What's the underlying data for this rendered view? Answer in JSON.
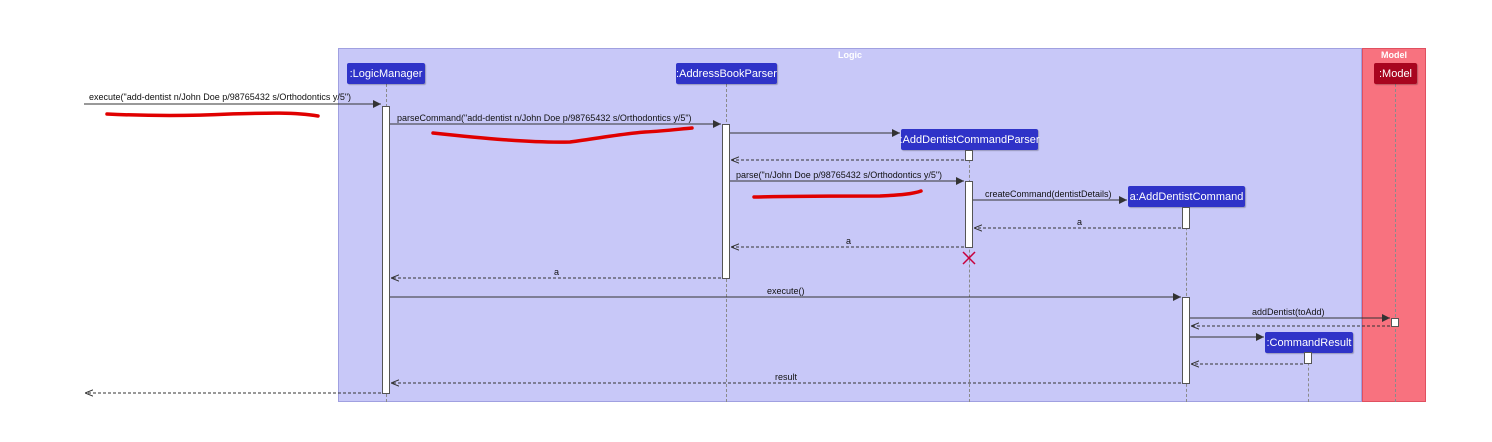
{
  "packages": {
    "logic": {
      "title": "Logic",
      "fill": "#c8c8f8"
    },
    "model": {
      "title": "Model",
      "fill": "#f8727f"
    }
  },
  "participants": {
    "logic_manager": ":LogicManager",
    "address_book_parser": ":AddressBookParser",
    "add_dentist_command_parser": ":AddDentistCommandParser",
    "add_dentist_command": "a:AddDentistCommand",
    "command_result": ":CommandResult",
    "model": ":Model"
  },
  "messages": {
    "execute_input": "execute(\"add-dentist n/John Doe p/98765432 s/Orthodontics y/5\")",
    "parse_command": "parseCommand(\"add-dentist n/John Doe p/98765432 s/Orthodontics y/5\")",
    "parse": "parse(\"n/John Doe p/98765432 s/Orthodontics y/5\")",
    "create_command": "createCommand(dentistDetails)",
    "return_a_1": "a",
    "return_a_2": "a",
    "return_a_3": "a",
    "execute": "execute()",
    "add_dentist": "addDentist(toAdd)",
    "result": "result"
  },
  "colors": {
    "participant": "#2f33c8",
    "model_participant": "#a8051f",
    "annotation": "#e00000",
    "destroy": "#c8003c"
  }
}
